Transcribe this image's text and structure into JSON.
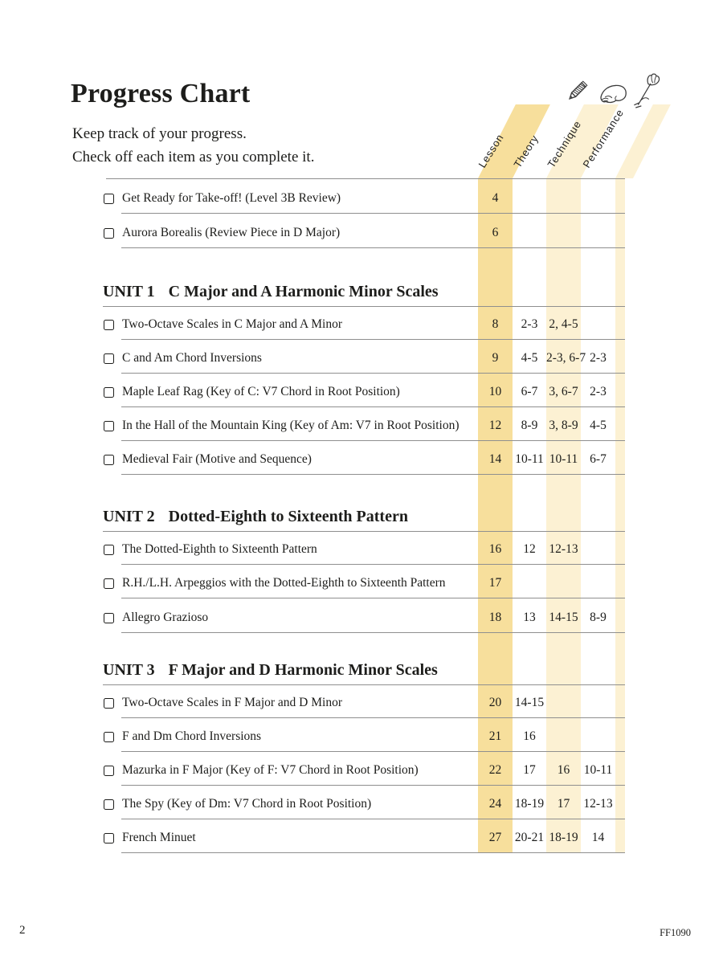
{
  "page": {
    "title": "Progress Chart",
    "subtitle_line1": "Keep track of your progress.",
    "subtitle_line2": "Check off each item as you complete it.",
    "footer_page_number": "2",
    "footer_code": "FF1090"
  },
  "colors": {
    "band_dark": "#F7DF9C",
    "band_light": "#FCF1D3",
    "rule": "#8F8F8F",
    "text": "#1D1D1B"
  },
  "columns": [
    {
      "label": "Lesson",
      "icon": "none",
      "band": "dark"
    },
    {
      "label": "Theory",
      "icon": "pencil-icon",
      "band": "none"
    },
    {
      "label": "Technique",
      "icon": "hand-icon",
      "band": "light"
    },
    {
      "label": "Performance",
      "icon": "flower-icon",
      "band": "none"
    }
  ],
  "sections": [
    {
      "rows": [
        {
          "title": "Get Ready for Take-off! (Level 3B Review)",
          "lesson": "4",
          "theory": "",
          "technique": "",
          "performance": ""
        },
        {
          "title": "Aurora Borealis (Review Piece in D Major)",
          "lesson": "6",
          "theory": "",
          "technique": "",
          "performance": ""
        }
      ]
    },
    {
      "heading_label": "UNIT 1",
      "heading_title": "C Major and A Harmonic Minor Scales",
      "rows": [
        {
          "title": "Two-Octave Scales in C Major and A Minor",
          "lesson": "8",
          "theory": "2-3",
          "technique": "2, 4-5",
          "performance": ""
        },
        {
          "title": "C and Am Chord Inversions",
          "lesson": "9",
          "theory": "4-5",
          "technique": "2-3, 6-7",
          "performance": "2-3"
        },
        {
          "title": "Maple Leaf Rag (Key of C: V7 Chord in Root Position)",
          "lesson": "10",
          "theory": "6-7",
          "technique": "3, 6-7",
          "performance": "2-3"
        },
        {
          "title": "In the Hall of the Mountain King (Key of Am: V7 in Root Position)",
          "lesson": "12",
          "theory": "8-9",
          "technique": "3, 8-9",
          "performance": "4-5"
        },
        {
          "title": "Medieval Fair (Motive and Sequence)",
          "lesson": "14",
          "theory": "10-11",
          "technique": "10-11",
          "performance": "6-7"
        }
      ]
    },
    {
      "heading_label": "UNIT 2",
      "heading_title": "Dotted-Eighth to Sixteenth Pattern",
      "rows": [
        {
          "title": "The Dotted-Eighth to Sixteenth Pattern",
          "lesson": "16",
          "theory": "12",
          "technique": "12-13",
          "performance": ""
        },
        {
          "title": "R.H./L.H. Arpeggios with the Dotted-Eighth to Sixteenth Pattern",
          "lesson": "17",
          "theory": "",
          "technique": "",
          "performance": ""
        },
        {
          "title": "Allegro Grazioso",
          "lesson": "18",
          "theory": "13",
          "technique": "14-15",
          "performance": "8-9"
        }
      ]
    },
    {
      "heading_label": "UNIT 3",
      "heading_title": "F Major and D Harmonic Minor Scales",
      "rows": [
        {
          "title": "Two-Octave Scales in F Major and D Minor",
          "lesson": "20",
          "theory": "14-15",
          "technique": "",
          "performance": ""
        },
        {
          "title": "F and Dm Chord Inversions",
          "lesson": "21",
          "theory": "16",
          "technique": "",
          "performance": ""
        },
        {
          "title": "Mazurka in F Major (Key of F: V7 Chord in Root Position)",
          "lesson": "22",
          "theory": "17",
          "technique": "16",
          "performance": "10-11"
        },
        {
          "title": "The Spy (Key of Dm: V7 Chord in Root Position)",
          "lesson": "24",
          "theory": "18-19",
          "technique": "17",
          "performance": "12-13"
        },
        {
          "title": "French Minuet",
          "lesson": "27",
          "theory": "20-21",
          "technique": "18-19",
          "performance": "14"
        }
      ]
    }
  ]
}
